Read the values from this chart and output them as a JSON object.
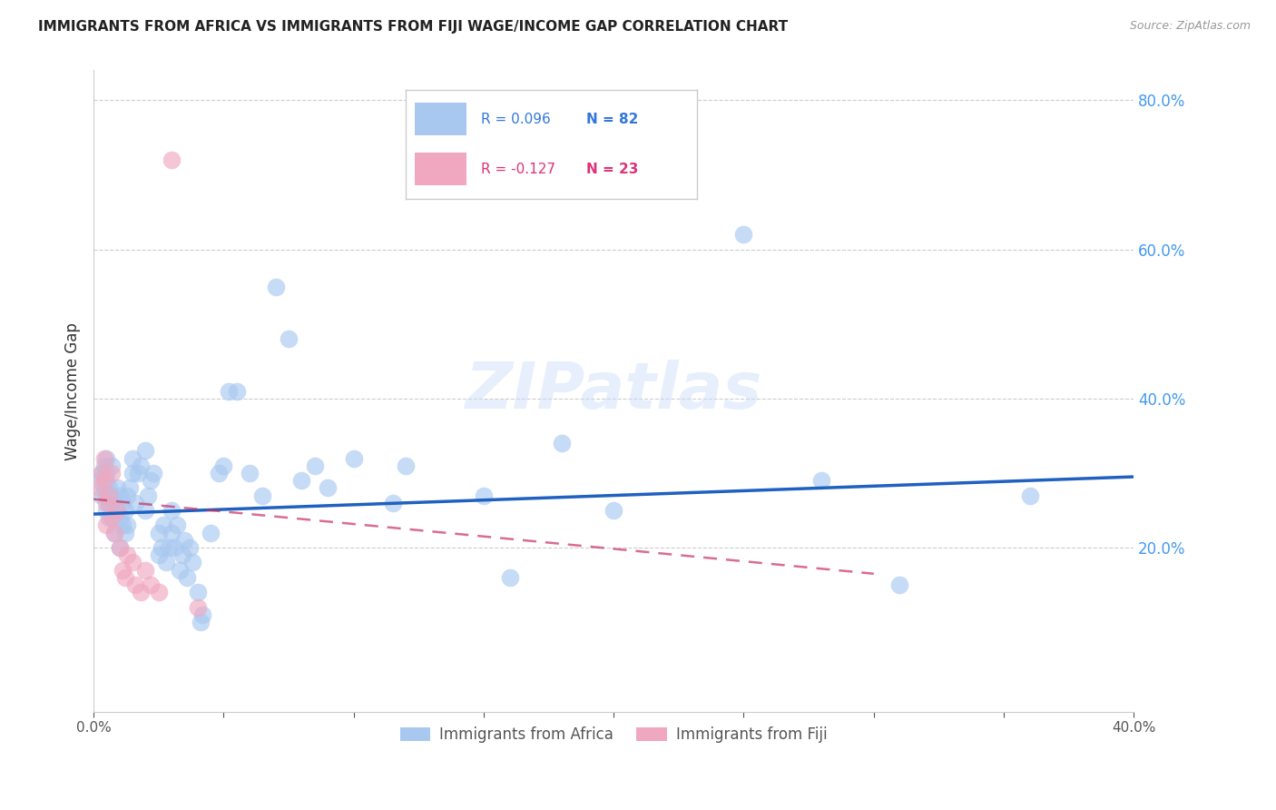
{
  "title": "IMMIGRANTS FROM AFRICA VS IMMIGRANTS FROM FIJI WAGE/INCOME GAP CORRELATION CHART",
  "source": "Source: ZipAtlas.com",
  "ylabel": "Wage/Income Gap",
  "legend_label_1": "Immigrants from Africa",
  "legend_label_2": "Immigrants from Fiji",
  "r1": 0.096,
  "n1": 82,
  "r2": -0.127,
  "n2": 23,
  "color1": "#a8c8f0",
  "color1_line": "#2060c0",
  "color2": "#f0a8c0",
  "color2_line": "#c83060",
  "xlim": [
    0.0,
    0.4
  ],
  "ylim": [
    -0.02,
    0.84
  ],
  "xticks": [
    0.0,
    0.05,
    0.1,
    0.15,
    0.2,
    0.25,
    0.3,
    0.35,
    0.4
  ],
  "yticks_right": [
    0.2,
    0.4,
    0.6,
    0.8
  ],
  "ytick_labels_right": [
    "20.0%",
    "40.0%",
    "60.0%",
    "80.0%"
  ],
  "watermark": "ZIPatlas",
  "africa_x": [
    0.002,
    0.003,
    0.003,
    0.004,
    0.004,
    0.005,
    0.005,
    0.005,
    0.005,
    0.005,
    0.006,
    0.006,
    0.006,
    0.007,
    0.007,
    0.007,
    0.008,
    0.008,
    0.009,
    0.009,
    0.01,
    0.01,
    0.01,
    0.011,
    0.011,
    0.012,
    0.012,
    0.013,
    0.013,
    0.014,
    0.015,
    0.015,
    0.016,
    0.017,
    0.018,
    0.02,
    0.02,
    0.021,
    0.022,
    0.023,
    0.025,
    0.025,
    0.026,
    0.027,
    0.028,
    0.029,
    0.03,
    0.03,
    0.031,
    0.032,
    0.033,
    0.034,
    0.035,
    0.036,
    0.037,
    0.038,
    0.04,
    0.041,
    0.042,
    0.045,
    0.048,
    0.05,
    0.052,
    0.055,
    0.06,
    0.065,
    0.07,
    0.075,
    0.08,
    0.085,
    0.09,
    0.1,
    0.115,
    0.12,
    0.15,
    0.16,
    0.18,
    0.2,
    0.25,
    0.28,
    0.31,
    0.36
  ],
  "africa_y": [
    0.29,
    0.3,
    0.27,
    0.28,
    0.31,
    0.25,
    0.27,
    0.29,
    0.3,
    0.32,
    0.24,
    0.26,
    0.28,
    0.25,
    0.27,
    0.31,
    0.22,
    0.26,
    0.25,
    0.28,
    0.2,
    0.24,
    0.27,
    0.23,
    0.26,
    0.22,
    0.25,
    0.23,
    0.27,
    0.28,
    0.3,
    0.32,
    0.26,
    0.3,
    0.31,
    0.25,
    0.33,
    0.27,
    0.29,
    0.3,
    0.19,
    0.22,
    0.2,
    0.23,
    0.18,
    0.2,
    0.22,
    0.25,
    0.2,
    0.23,
    0.17,
    0.19,
    0.21,
    0.16,
    0.2,
    0.18,
    0.14,
    0.1,
    0.11,
    0.22,
    0.3,
    0.31,
    0.41,
    0.41,
    0.3,
    0.27,
    0.55,
    0.48,
    0.29,
    0.31,
    0.28,
    0.32,
    0.26,
    0.31,
    0.27,
    0.16,
    0.34,
    0.25,
    0.62,
    0.29,
    0.15,
    0.27
  ],
  "fiji_x": [
    0.002,
    0.003,
    0.004,
    0.004,
    0.005,
    0.005,
    0.006,
    0.007,
    0.007,
    0.008,
    0.009,
    0.01,
    0.011,
    0.012,
    0.013,
    0.015,
    0.016,
    0.018,
    0.02,
    0.022,
    0.025,
    0.03,
    0.04
  ],
  "fiji_y": [
    0.28,
    0.3,
    0.29,
    0.32,
    0.23,
    0.26,
    0.27,
    0.24,
    0.3,
    0.22,
    0.25,
    0.2,
    0.17,
    0.16,
    0.19,
    0.18,
    0.15,
    0.14,
    0.17,
    0.15,
    0.14,
    0.72,
    0.12
  ],
  "africa_trend_x": [
    0.0,
    0.4
  ],
  "africa_trend_y": [
    0.245,
    0.295
  ],
  "fiji_trend_x": [
    0.0,
    0.3
  ],
  "fiji_trend_y": [
    0.265,
    0.165
  ]
}
